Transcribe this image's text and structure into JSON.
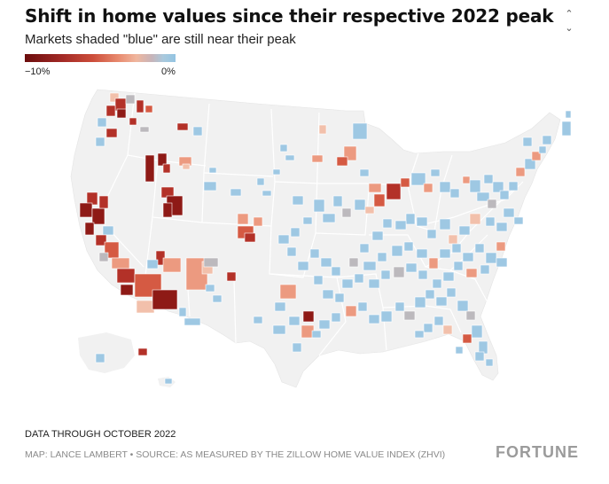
{
  "header": {
    "title": "Shift in home values since their respective 2022 peak",
    "subtitle": "Markets shaded \"blue\" are still near their peak"
  },
  "legend": {
    "min_label": "−10%",
    "max_label": "0%",
    "colors": [
      "#6b0d0d",
      "#a32a26",
      "#cc4d3a",
      "#e88a6e",
      "#f0b69e",
      "#c8b4b8",
      "#93c4e2"
    ]
  },
  "scroll": {
    "up_icon": "chevron-up-icon",
    "down_icon": "chevron-down-icon"
  },
  "footer": {
    "data_note": "DATA THROUGH OCTOBER 2022",
    "credit": "MAP: LANCE LAMBERT • SOURCE: AS MEASURED BY THE ZILLOW HOME VALUE INDEX (ZHVI)",
    "brand": "FORTUNE"
  },
  "map_colors": {
    "land": "#f1f1f1",
    "border": "#ffffff",
    "deep_red": "#8e1a16",
    "red": "#b33128",
    "orange_red": "#d55a43",
    "salmon": "#ec9a80",
    "light_salmon": "#f2c0ab",
    "gray": "#bcb9bd",
    "blue": "#9ec8e3"
  }
}
